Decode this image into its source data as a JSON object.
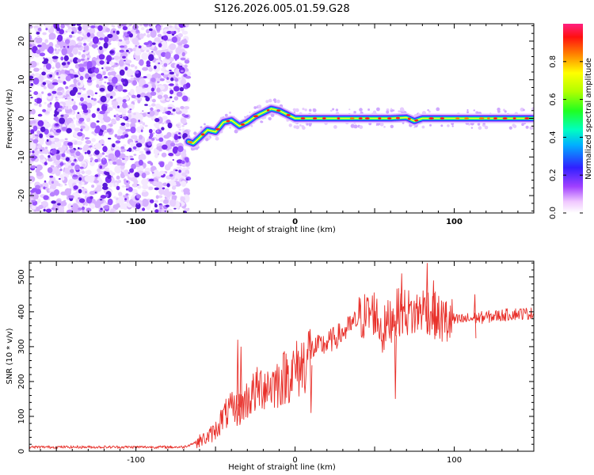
{
  "title": "S126.2026.005.01.59.G28",
  "colors": {
    "snr_line": "#e8302a",
    "noise_purple": "#7a2cf0",
    "axis": "#000000",
    "background": "#ffffff"
  },
  "chart_data": [
    {
      "type": "heatmap",
      "title": "S126.2026.005.01.59.G28",
      "xlabel": "Height of straight line (km)",
      "ylabel": "Frequency (Hz)",
      "xlim": [
        -167,
        150
      ],
      "ylim": [
        -24.5,
        24.5
      ],
      "x_ticks": [
        -100,
        0,
        100
      ],
      "y_ticks": [
        20,
        10,
        0,
        -10,
        -20
      ],
      "noise_region_x": [
        -167,
        -67
      ],
      "ridge": {
        "x": [
          -67,
          -64,
          -60,
          -55,
          -50,
          -45,
          -40,
          -35,
          -30,
          -25,
          -20,
          -15,
          -10,
          -5,
          0,
          10,
          20,
          40,
          60,
          70,
          75,
          80,
          100,
          120,
          150
        ],
        "y": [
          -6,
          -6.5,
          -5,
          -3,
          -3.5,
          -1,
          -0.5,
          -2,
          -1,
          0.5,
          1.5,
          2.5,
          2,
          1,
          0,
          0,
          0,
          0,
          0,
          0.2,
          -0.7,
          0,
          0,
          0,
          0
        ]
      },
      "colorbar": {
        "label": "Normalized spectral amplitude",
        "range": [
          0,
          1
        ],
        "ticks": [
          "0.0",
          "0.2",
          "0.4",
          "0.6",
          "0.8"
        ]
      }
    },
    {
      "type": "line",
      "xlabel": "Height of straight line (km)",
      "ylabel": "SNR (10 * v/v)",
      "xlim": [
        -167,
        150
      ],
      "ylim": [
        0,
        545
      ],
      "x_ticks": [
        -100,
        0,
        100
      ],
      "y_ticks": [
        0,
        100,
        200,
        300,
        400,
        500
      ],
      "series": [
        {
          "name": "SNR",
          "x": [
            -167,
            -70,
            -60,
            -55,
            -50,
            -45,
            -40,
            -35,
            -30,
            -25,
            -20,
            -15,
            -10,
            -5,
            0,
            5,
            10,
            15,
            20,
            30,
            40,
            50,
            55,
            60,
            65,
            70,
            75,
            80,
            85,
            90,
            95,
            100,
            110,
            120,
            130,
            140,
            150
          ],
          "values": [
            12,
            12,
            30,
            40,
            60,
            100,
            120,
            120,
            150,
            170,
            190,
            190,
            200,
            220,
            230,
            250,
            290,
            300,
            310,
            340,
            380,
            400,
            340,
            380,
            400,
            400,
            390,
            410,
            400,
            380,
            370,
            375,
            380,
            385,
            390,
            395,
            395
          ]
        }
      ],
      "spikes": [
        {
          "x": -36,
          "value": 320
        },
        {
          "x": -34,
          "value": 300
        },
        {
          "x": 10,
          "value": 110
        },
        {
          "x": 63,
          "value": 150
        },
        {
          "x": 67,
          "value": 510
        },
        {
          "x": 83,
          "value": 540
        },
        {
          "x": 87,
          "value": 490
        },
        {
          "x": 95,
          "value": 430
        },
        {
          "x": 113,
          "value": 450
        }
      ]
    }
  ]
}
